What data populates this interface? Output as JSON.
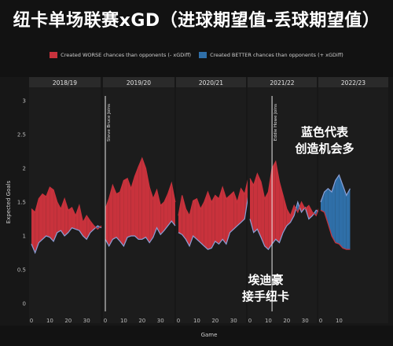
{
  "title": "纽卡单场联赛xGD（进球期望值-丢球期望值）",
  "legend": {
    "worse": "Created WORSE chances than opponents (- xGDiff)",
    "better": "Created BETTER chances than opponents (+ xGDiff)"
  },
  "annotations": {
    "blue_note_line1": "蓝色代表",
    "blue_note_line2": "创造机会多",
    "howe_note_line1": "埃迪豪",
    "howe_note_line2": "接手纽卡",
    "bruce_label": "Steve Bruce Joins",
    "howe_label": "Eddie Howe Joins"
  },
  "colors": {
    "worse": "#c8323c",
    "better": "#2f6fa8",
    "line": "#8aa0d8",
    "background": "#121212",
    "panel": "#1c1c1c"
  },
  "chart_data": {
    "type": "area",
    "title": "纽卡单场联赛xGD（进球期望值-丢球期望值）",
    "xlabel": "Game",
    "ylabel": "Expected Goals",
    "ylim": [
      0,
      3
    ],
    "yticks": [
      "0",
      "0.5",
      "1",
      "1.5",
      "2",
      "2.5",
      "3"
    ],
    "xticks": [
      "0",
      "10",
      "20",
      "30"
    ],
    "grid": false,
    "legend_position": "top",
    "seasons": [
      {
        "name": "2018/19",
        "games": 38,
        "x": [
          0,
          2,
          4,
          6,
          8,
          10,
          12,
          14,
          16,
          18,
          20,
          22,
          24,
          26,
          28,
          30,
          32,
          34,
          36,
          38
        ],
        "created": [
          0.88,
          0.75,
          0.9,
          0.95,
          1.0,
          0.98,
          0.92,
          1.05,
          1.08,
          1.0,
          1.05,
          1.12,
          1.1,
          1.08,
          1.0,
          0.95,
          1.05,
          1.1,
          1.15,
          1.12
        ],
        "conceded": [
          1.4,
          1.35,
          1.55,
          1.62,
          1.58,
          1.72,
          1.68,
          1.5,
          1.4,
          1.55,
          1.38,
          1.42,
          1.3,
          1.45,
          1.2,
          1.3,
          1.22,
          1.15,
          1.1,
          1.15
        ]
      },
      {
        "name": "2019/20",
        "games": 38,
        "x": [
          0,
          2,
          4,
          6,
          8,
          10,
          12,
          14,
          16,
          18,
          20,
          22,
          24,
          26,
          28,
          30,
          32,
          34,
          36,
          38
        ],
        "created": [
          0.95,
          0.85,
          0.95,
          0.98,
          0.92,
          0.85,
          0.98,
          1.0,
          1.0,
          0.95,
          0.95,
          0.98,
          0.9,
          0.98,
          1.12,
          1.02,
          1.08,
          1.15,
          1.22,
          1.15
        ],
        "conceded": [
          1.4,
          1.55,
          1.75,
          1.62,
          1.65,
          1.82,
          1.85,
          1.7,
          1.88,
          2.02,
          2.15,
          2.0,
          1.72,
          1.55,
          1.68,
          1.45,
          1.5,
          1.62,
          1.78,
          1.5
        ]
      },
      {
        "name": "2020/21",
        "games": 38,
        "x": [
          0,
          2,
          4,
          6,
          8,
          10,
          12,
          14,
          16,
          18,
          20,
          22,
          24,
          26,
          28,
          30,
          32,
          34,
          36,
          38
        ],
        "created": [
          1.05,
          1.02,
          0.95,
          0.85,
          1.0,
          0.95,
          0.9,
          0.85,
          0.8,
          0.82,
          0.92,
          0.88,
          0.95,
          0.88,
          1.05,
          1.1,
          1.15,
          1.2,
          1.25,
          1.6
        ],
        "conceded": [
          1.3,
          1.6,
          1.4,
          1.3,
          1.52,
          1.55,
          1.4,
          1.5,
          1.65,
          1.5,
          1.6,
          1.55,
          1.72,
          1.55,
          1.6,
          1.65,
          1.5,
          1.7,
          1.62,
          1.85
        ]
      },
      {
        "name": "2021/22",
        "games": 38,
        "x": [
          0,
          2,
          4,
          6,
          8,
          10,
          12,
          14,
          16,
          18,
          20,
          22,
          24,
          26,
          28,
          30,
          32,
          34,
          36,
          38
        ],
        "created": [
          1.25,
          1.05,
          1.1,
          0.98,
          0.85,
          0.8,
          0.88,
          0.95,
          0.9,
          1.05,
          1.15,
          1.2,
          1.3,
          1.5,
          1.35,
          1.42,
          1.25,
          1.3,
          1.38,
          1.35
        ],
        "conceded": [
          1.85,
          1.75,
          1.92,
          1.8,
          1.55,
          1.65,
          2.0,
          2.1,
          1.8,
          1.6,
          1.4,
          1.3,
          1.45,
          1.35,
          1.5,
          1.4,
          1.45,
          1.35,
          1.3,
          1.45
        ]
      },
      {
        "name": "2022/23",
        "games": 16,
        "x": [
          0,
          2,
          4,
          6,
          8,
          10,
          12,
          14,
          16
        ],
        "created": [
          1.5,
          1.65,
          1.7,
          1.65,
          1.82,
          1.9,
          1.75,
          1.6,
          1.7
        ],
        "conceded": [
          1.38,
          1.35,
          1.18,
          1.0,
          0.9,
          0.88,
          0.82,
          0.8,
          0.8
        ]
      }
    ],
    "events": [
      {
        "label": "Steve Bruce Joins",
        "season": "2019/20",
        "game": 0
      },
      {
        "label": "Eddie Howe Joins",
        "season": "2021/22",
        "game": 12
      }
    ]
  }
}
